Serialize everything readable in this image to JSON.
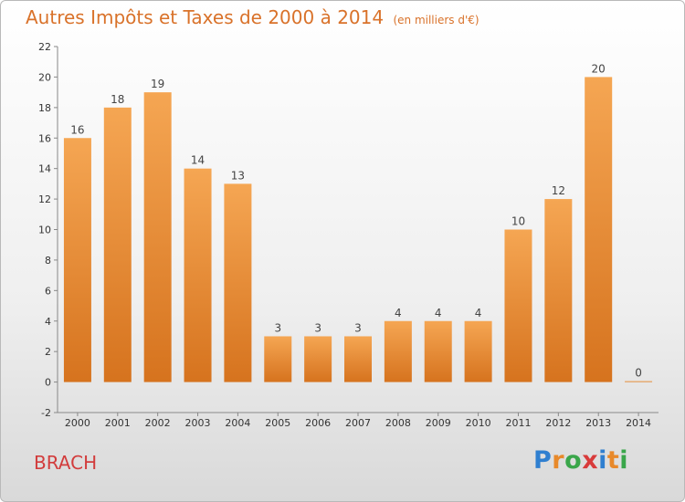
{
  "chart_data": {
    "type": "bar",
    "title": "Autres Impôts et Taxes de 2000 à 2014",
    "unit": "(en milliers d'€)",
    "categories": [
      "2000",
      "2001",
      "2002",
      "2003",
      "2004",
      "2005",
      "2006",
      "2007",
      "2008",
      "2009",
      "2010",
      "2011",
      "2012",
      "2013",
      "2014"
    ],
    "values": [
      16,
      18,
      19,
      14,
      13,
      3,
      3,
      3,
      4,
      4,
      4,
      10,
      12,
      20,
      0
    ],
    "ylim": [
      -2,
      22
    ],
    "yticks": [
      -2,
      0,
      2,
      4,
      6,
      8,
      10,
      12,
      14,
      16,
      18,
      20,
      22
    ],
    "grid": false,
    "bar_color": "#e8892a"
  },
  "place": "BRACH",
  "logo": {
    "letters": [
      "P",
      "r",
      "o",
      "x",
      "i",
      "t",
      "i"
    ]
  }
}
